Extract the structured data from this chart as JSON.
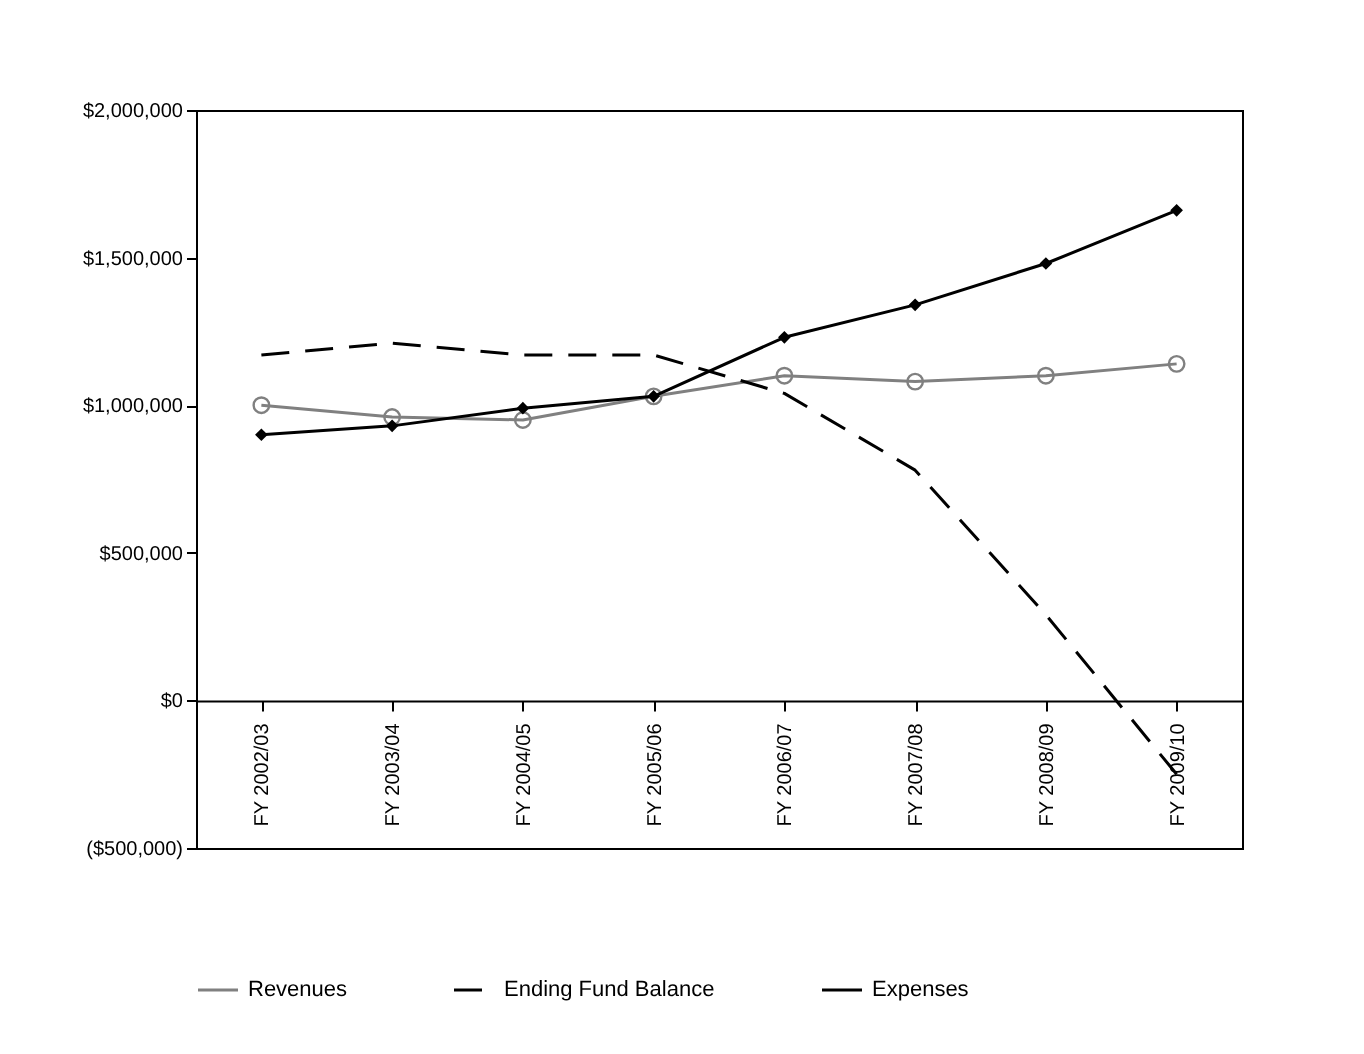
{
  "chart_data": {
    "type": "line",
    "categories": [
      "FY 2002/03",
      "FY 2003/04",
      "FY 2004/05",
      "FY 2005/06",
      "FY 2006/07",
      "FY 2007/08",
      "FY 2008/09",
      "FY 2009/10"
    ],
    "series": [
      {
        "name": "Revenues",
        "color": "#808080",
        "marker": "circle",
        "line_style": "solid",
        "values": [
          1000000,
          960000,
          950000,
          1030000,
          1100000,
          1080000,
          1100000,
          1140000
        ]
      },
      {
        "name": "Ending Fund Balance",
        "color": "#000000",
        "marker": "none",
        "line_style": "dashed",
        "values": [
          1170000,
          1210000,
          1170000,
          1170000,
          1040000,
          780000,
          290000,
          -250000
        ]
      },
      {
        "name": "Expenses",
        "color": "#000000",
        "marker": "diamond",
        "line_style": "solid",
        "values": [
          900000,
          930000,
          990000,
          1030000,
          1230000,
          1340000,
          1480000,
          1660000
        ]
      }
    ],
    "ylim": [
      -500000,
      2000000
    ],
    "yticks": [
      {
        "value": -500000,
        "label": "($500,000)"
      },
      {
        "value": 0,
        "label": "$0"
      },
      {
        "value": 500000,
        "label": "$500,000"
      },
      {
        "value": 1000000,
        "label": "$1,000,000"
      },
      {
        "value": 1500000,
        "label": "$1,500,000"
      },
      {
        "value": 2000000,
        "label": "$2,000,000"
      }
    ],
    "grid": false,
    "legend": "bottom"
  }
}
